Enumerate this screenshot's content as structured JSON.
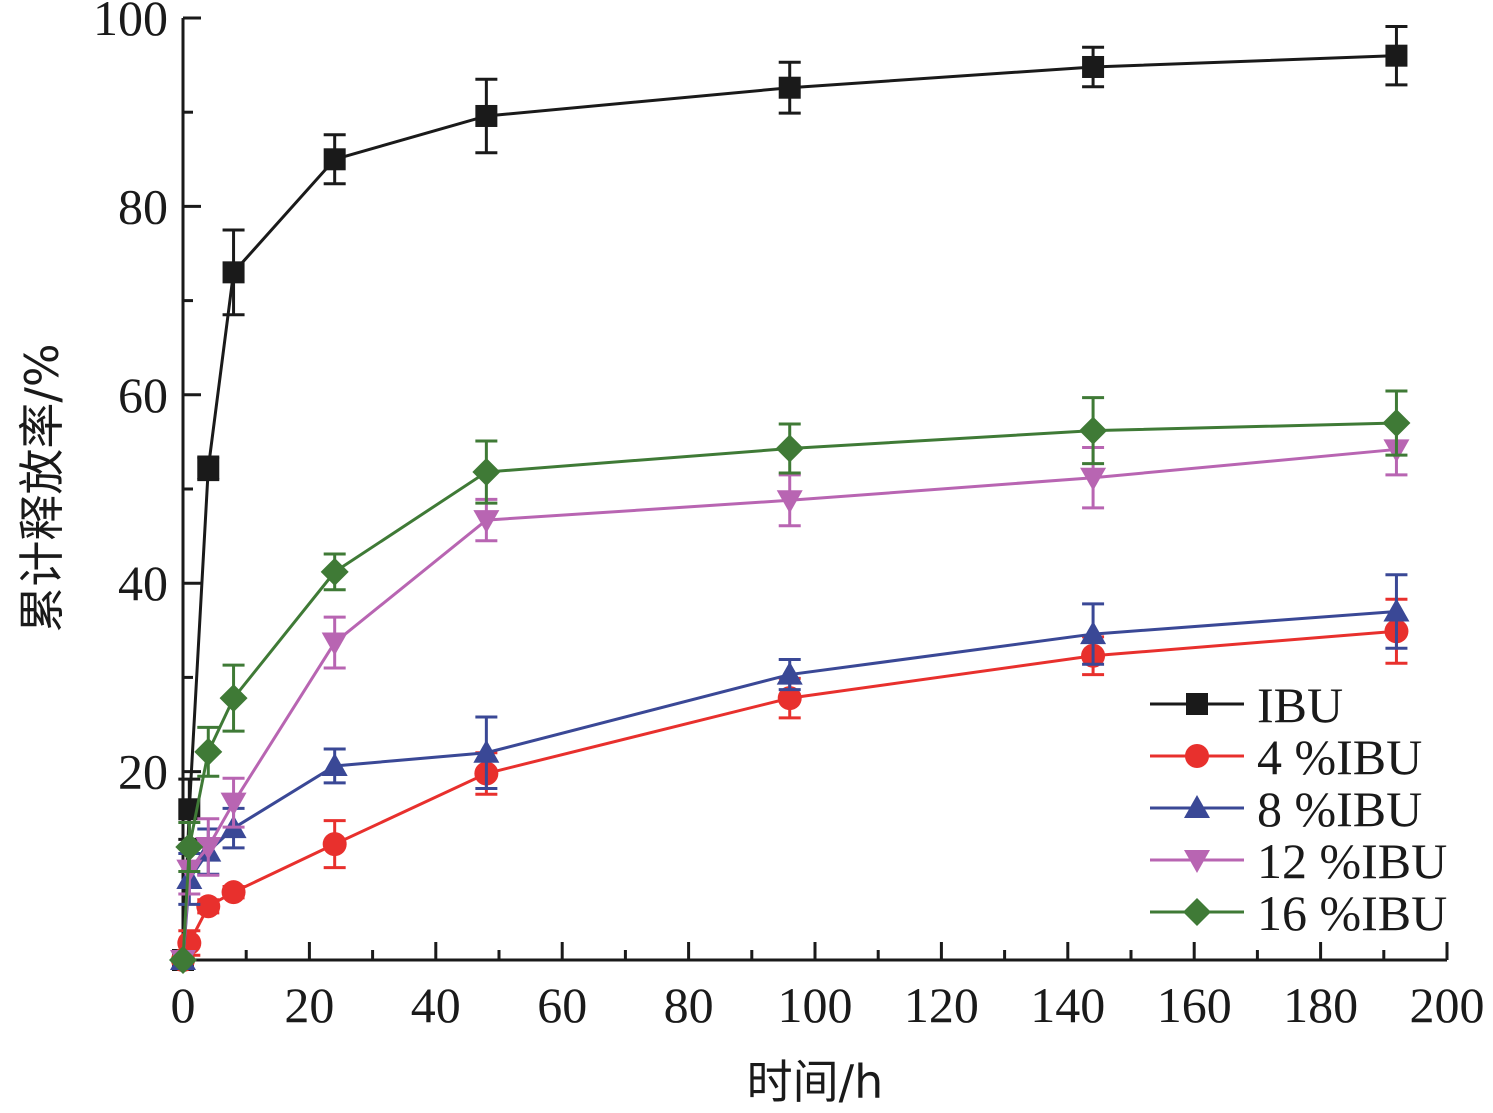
{
  "chart_data": {
    "type": "line",
    "xlabel": "时间/h",
    "ylabel": "累计释放率/%",
    "xlim": [
      0,
      200
    ],
    "ylim": [
      0,
      100
    ],
    "xticks": [
      0,
      20,
      40,
      60,
      80,
      100,
      120,
      140,
      160,
      180,
      200
    ],
    "yticks": [
      20,
      40,
      60,
      80,
      100
    ],
    "grid": false,
    "legend_position": "bottom-right",
    "x": [
      0,
      1,
      4,
      8,
      24,
      48,
      96,
      144,
      192
    ],
    "series": [
      {
        "name": "IBU",
        "color": "#1a1a1a",
        "marker": "square",
        "values": [
          0,
          16,
          52.2,
          73,
          85,
          89.6,
          92.6,
          94.8,
          96
        ],
        "errors": [
          0,
          3.2,
          1.2,
          4.5,
          2.6,
          3.9,
          2.7,
          2.1,
          3.1
        ]
      },
      {
        "name": "4 %IBU",
        "color": "#e8302d",
        "marker": "circle",
        "values": [
          0,
          1.8,
          5.7,
          7.2,
          12.3,
          19.8,
          27.8,
          32.3,
          34.9
        ],
        "errors": [
          0,
          1.3,
          0.7,
          0.6,
          2.5,
          2.2,
          2.1,
          2,
          3.4
        ]
      },
      {
        "name": "8 %IBU",
        "color": "#3a4896",
        "marker": "triangle-up",
        "values": [
          0,
          8.6,
          11.5,
          14,
          20.6,
          22,
          30.3,
          34.6,
          37
        ],
        "errors": [
          0,
          2.7,
          2.4,
          2.1,
          1.8,
          3.8,
          1.6,
          3.2,
          3.9
        ]
      },
      {
        "name": "12 %IBU",
        "color": "#b865b2",
        "marker": "triangle-down",
        "values": [
          0,
          9.6,
          12,
          16.7,
          33.7,
          46.7,
          48.8,
          51.2,
          54.2
        ],
        "errors": [
          0,
          2.6,
          3,
          2.6,
          2.7,
          2.2,
          2.7,
          3.2,
          2.7
        ]
      },
      {
        "name": "16 %IBU",
        "color": "#3f7a36",
        "marker": "diamond",
        "values": [
          0,
          12,
          22.1,
          27.8,
          41.2,
          51.8,
          54.3,
          56.2,
          57
        ],
        "errors": [
          0,
          2.6,
          2.6,
          3.5,
          1.9,
          3.3,
          2.6,
          3.5,
          3.4
        ]
      }
    ]
  }
}
